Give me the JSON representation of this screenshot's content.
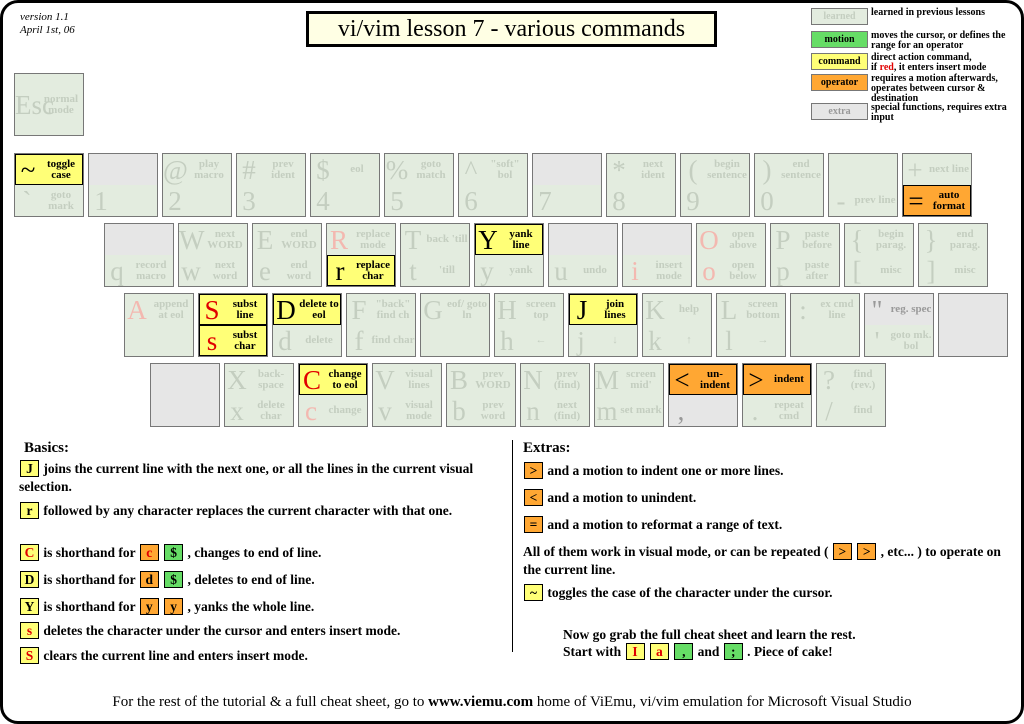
{
  "header": {
    "version": "version 1.1",
    "date": "April 1st, 06",
    "title": "vi/vim lesson 7 - various commands"
  },
  "legend": [
    {
      "label": "learned",
      "kind": "learned",
      "text": "learned in previous lessons"
    },
    {
      "label": "motion",
      "kind": "motion",
      "text": "moves the cursor, or defines the range for an operator"
    },
    {
      "label": "command",
      "kind": "command",
      "text": [
        "direct action command,",
        "if ",
        "red",
        ", it enters insert mode"
      ]
    },
    {
      "label": "operator",
      "kind": "operator",
      "text": "requires a motion afterwards, operates between cursor & destination"
    },
    {
      "label": "extra",
      "kind": "extra",
      "text": "special functions, requires extra input"
    }
  ],
  "keyboard": {
    "esc": {
      "char": "Esc",
      "desc": "normal mode",
      "kind": "learned"
    },
    "rows": [
      [
        {
          "upper": {
            "char": "~",
            "desc": "toggle case",
            "kind": "command"
          },
          "lower": {
            "char": "`",
            "desc": "goto mark",
            "kind": "learned"
          }
        },
        {
          "upper": {
            "kind": "extra"
          },
          "lower": {
            "char": "1",
            "kind": "learned"
          }
        },
        {
          "upper": {
            "char": "@",
            "desc": "play macro",
            "kind": "learned"
          },
          "lower": {
            "char": "2",
            "kind": "learned"
          }
        },
        {
          "upper": {
            "char": "#",
            "desc": "prev ident",
            "kind": "learned"
          },
          "lower": {
            "char": "3",
            "kind": "learned"
          }
        },
        {
          "upper": {
            "char": "$",
            "desc": "eol",
            "kind": "learned"
          },
          "lower": {
            "char": "4",
            "kind": "learned"
          }
        },
        {
          "upper": {
            "char": "%",
            "desc": "goto match",
            "kind": "learned"
          },
          "lower": {
            "char": "5",
            "kind": "learned"
          }
        },
        {
          "upper": {
            "char": "^",
            "desc": "\"soft\" bol",
            "kind": "learned"
          },
          "lower": {
            "char": "6",
            "kind": "learned"
          }
        },
        {
          "upper": {
            "kind": "extra"
          },
          "lower": {
            "char": "7",
            "kind": "learned"
          }
        },
        {
          "upper": {
            "char": "*",
            "desc": "next ident",
            "kind": "learned"
          },
          "lower": {
            "char": "8",
            "kind": "learned"
          }
        },
        {
          "upper": {
            "char": "(",
            "desc": "begin sentence",
            "kind": "learned"
          },
          "lower": {
            "char": "9",
            "kind": "learned"
          }
        },
        {
          "upper": {
            "char": ")",
            "desc": "end sentence",
            "kind": "learned"
          },
          "lower": {
            "char": "0",
            "kind": "learned"
          }
        },
        {
          "upper": {
            "kind": "learned"
          },
          "lower": {
            "char": "-",
            "desc": "prev line",
            "kind": "learned"
          }
        },
        {
          "upper": {
            "char": "+",
            "desc": "next line",
            "kind": "learned"
          },
          "lower": {
            "char": "=",
            "desc": "auto format",
            "kind": "operator"
          }
        }
      ],
      [
        {
          "upper": {
            "kind": "extra"
          },
          "lower": {
            "char": "q",
            "desc": "record macro",
            "kind": "learned"
          }
        },
        {
          "upper": {
            "char": "W",
            "desc": "next WORD",
            "kind": "learned"
          },
          "lower": {
            "char": "w",
            "desc": "next word",
            "kind": "learned"
          }
        },
        {
          "upper": {
            "char": "E",
            "desc": "end WORD",
            "kind": "learned"
          },
          "lower": {
            "char": "e",
            "desc": "end word",
            "kind": "learned"
          }
        },
        {
          "upper": {
            "char": "R",
            "desc": "replace mode",
            "kind": "learned",
            "red": true
          },
          "lower": {
            "char": "r",
            "desc": "replace char",
            "kind": "command"
          }
        },
        {
          "upper": {
            "char": "T",
            "desc": "back 'till",
            "kind": "learned"
          },
          "lower": {
            "char": "t",
            "desc": "'till",
            "kind": "learned"
          }
        },
        {
          "upper": {
            "char": "Y",
            "desc": "yank line",
            "kind": "command"
          },
          "lower": {
            "char": "y",
            "desc": "yank",
            "kind": "learned"
          }
        },
        {
          "upper": {
            "kind": "extra"
          },
          "lower": {
            "char": "u",
            "desc": "undo",
            "kind": "learned"
          }
        },
        {
          "upper": {
            "kind": "extra"
          },
          "lower": {
            "char": "i",
            "desc": "insert mode",
            "kind": "learned",
            "red": true
          }
        },
        {
          "upper": {
            "char": "O",
            "desc": "open above",
            "kind": "learned",
            "red": true
          },
          "lower": {
            "char": "o",
            "desc": "open below",
            "kind": "learned",
            "red": true
          }
        },
        {
          "upper": {
            "char": "P",
            "desc": "paste before",
            "kind": "learned"
          },
          "lower": {
            "char": "p",
            "desc": "paste after",
            "kind": "learned"
          }
        },
        {
          "upper": {
            "char": "{",
            "desc": "begin parag.",
            "kind": "learned"
          },
          "lower": {
            "char": "[",
            "desc": "misc",
            "kind": "learned"
          }
        },
        {
          "upper": {
            "char": "}",
            "desc": "end parag.",
            "kind": "learned"
          },
          "lower": {
            "char": "]",
            "desc": "misc",
            "kind": "learned"
          }
        }
      ],
      [
        {
          "upper": {
            "char": "A",
            "desc": "append at eol",
            "kind": "learned",
            "red": true
          },
          "lower": {
            "kind": "learned"
          }
        },
        {
          "upper": {
            "char": "S",
            "desc": "subst line",
            "kind": "command",
            "red": true
          },
          "lower": {
            "char": "s",
            "desc": "subst char",
            "kind": "command",
            "red": true
          }
        },
        {
          "upper": {
            "char": "D",
            "desc": "delete to eol",
            "kind": "command"
          },
          "lower": {
            "char": "d",
            "desc": "delete",
            "kind": "learned"
          }
        },
        {
          "upper": {
            "char": "F",
            "desc": "\"back\" find ch",
            "kind": "learned"
          },
          "lower": {
            "char": "f",
            "desc": "find char",
            "kind": "learned"
          }
        },
        {
          "upper": {
            "char": "G",
            "desc": "eof/ goto ln",
            "kind": "learned"
          },
          "lower": {
            "kind": "learned"
          }
        },
        {
          "upper": {
            "char": "H",
            "desc": "screen top",
            "kind": "learned"
          },
          "lower": {
            "char": "h",
            "desc": "←",
            "kind": "learned"
          }
        },
        {
          "upper": {
            "char": "J",
            "desc": "join lines",
            "kind": "command"
          },
          "lower": {
            "char": "j",
            "desc": "↓",
            "kind": "learned"
          }
        },
        {
          "upper": {
            "char": "K",
            "desc": "help",
            "kind": "learned"
          },
          "lower": {
            "char": "k",
            "desc": "↑",
            "kind": "learned"
          }
        },
        {
          "upper": {
            "char": "L",
            "desc": "screen bottom",
            "kind": "learned"
          },
          "lower": {
            "char": "l",
            "desc": "→",
            "kind": "learned"
          }
        },
        {
          "upper": {
            "char": ":",
            "desc": "ex cmd line",
            "kind": "learned"
          },
          "lower": {
            "kind": "learned"
          }
        },
        {
          "upper": {
            "char": "\"",
            "desc": "reg. spec",
            "kind": "extra"
          },
          "lower": {
            "char": "'",
            "desc": "goto mk. bol",
            "kind": "learned"
          }
        },
        {
          "upper": {
            "kind": "extra"
          },
          "lower": {
            "kind": "extra"
          }
        }
      ],
      [
        {
          "upper": {
            "kind": "extra"
          },
          "lower": {
            "kind": "extra"
          }
        },
        {
          "upper": {
            "char": "X",
            "desc": "back-space",
            "kind": "learned"
          },
          "lower": {
            "char": "x",
            "desc": "delete char",
            "kind": "learned"
          }
        },
        {
          "upper": {
            "char": "C",
            "desc": "change to eol",
            "kind": "command",
            "red": true
          },
          "lower": {
            "char": "c",
            "desc": "change",
            "kind": "learned",
            "red": true
          }
        },
        {
          "upper": {
            "char": "V",
            "desc": "visual lines",
            "kind": "learned"
          },
          "lower": {
            "char": "v",
            "desc": "visual mode",
            "kind": "learned"
          }
        },
        {
          "upper": {
            "char": "B",
            "desc": "prev WORD",
            "kind": "learned"
          },
          "lower": {
            "char": "b",
            "desc": "prev word",
            "kind": "learned"
          }
        },
        {
          "upper": {
            "char": "N",
            "desc": "prev (find)",
            "kind": "learned"
          },
          "lower": {
            "char": "n",
            "desc": "next (find)",
            "kind": "learned"
          }
        },
        {
          "upper": {
            "char": "M",
            "desc": "screen mid'",
            "kind": "learned"
          },
          "lower": {
            "char": "m",
            "desc": "set mark",
            "kind": "learned"
          }
        },
        {
          "upper": {
            "char": "<",
            "desc": "un-indent",
            "kind": "operator"
          },
          "lower": {
            "char": ",",
            "kind": "extra"
          }
        },
        {
          "upper": {
            "char": ">",
            "desc": "indent",
            "kind": "operator"
          },
          "lower": {
            "char": ".",
            "desc": "repeat cmd",
            "kind": "learned"
          }
        },
        {
          "upper": {
            "char": "?",
            "desc": "find (rev.)",
            "kind": "learned"
          },
          "lower": {
            "char": "/",
            "desc": "find",
            "kind": "learned"
          }
        }
      ]
    ]
  },
  "basics": {
    "heading": "Basics:",
    "items": [
      [
        {
          "key": "J",
          "kind": "command"
        },
        "joins the current line with the next one, or all the lines in the current visual selection."
      ],
      [
        {
          "key": "r",
          "kind": "command"
        },
        "followed by any character replaces the current character with that one."
      ],
      [
        {
          "key": "C",
          "kind": "command",
          "red": true
        },
        "is shorthand for",
        {
          "key": "c",
          "kind": "operator",
          "red": true
        },
        {
          "key": "$",
          "kind": "motion"
        },
        ", changes to end of line."
      ],
      [
        {
          "key": "D",
          "kind": "command"
        },
        "is shorthand for",
        {
          "key": "d",
          "kind": "operator"
        },
        {
          "key": "$",
          "kind": "motion"
        },
        ", deletes to end of line."
      ],
      [
        {
          "key": "Y",
          "kind": "command"
        },
        "is shorthand for",
        {
          "key": "y",
          "kind": "operator"
        },
        {
          "key": "y",
          "kind": "operator"
        },
        ", yanks the whole line."
      ],
      [
        {
          "key": "s",
          "kind": "command",
          "red": true
        },
        "deletes the character under the cursor and enters insert mode."
      ],
      [
        {
          "key": "S",
          "kind": "command",
          "red": true
        },
        "clears the current line and enters insert mode."
      ]
    ]
  },
  "extras": {
    "heading": "Extras:",
    "items": [
      [
        {
          "key": ">",
          "kind": "operator"
        },
        "and a motion to indent one or more lines."
      ],
      [
        {
          "key": "<",
          "kind": "operator"
        },
        "and a motion to unindent."
      ],
      [
        {
          "key": "=",
          "kind": "operator"
        },
        "and a motion to reformat a range of text."
      ],
      [
        "All of them work in visual mode, or can be repeated (",
        {
          "key": ">",
          "kind": "operator"
        },
        {
          "key": ">",
          "kind": "operator"
        },
        ", etc... ) to operate on the current line."
      ],
      [
        {
          "key": "~",
          "kind": "command"
        },
        "toggles the case of the character under the cursor."
      ]
    ],
    "closing": [
      [
        "Now go grab the full cheat sheet and learn the rest."
      ],
      [
        "Start with",
        {
          "key": "I",
          "kind": "command",
          "red": true
        },
        {
          "key": "a",
          "kind": "command",
          "red": true
        },
        {
          "key": ",",
          "kind": "motion"
        },
        "and",
        {
          "key": ";",
          "kind": "motion"
        },
        ". Piece of cake!"
      ]
    ]
  },
  "footer": {
    "before": "For the rest of the tutorial & a full cheat sheet, go to",
    "link": "www.viemu.com",
    "after": "home of ViEmu, vi/vim emulation for Microsoft Visual Studio"
  }
}
